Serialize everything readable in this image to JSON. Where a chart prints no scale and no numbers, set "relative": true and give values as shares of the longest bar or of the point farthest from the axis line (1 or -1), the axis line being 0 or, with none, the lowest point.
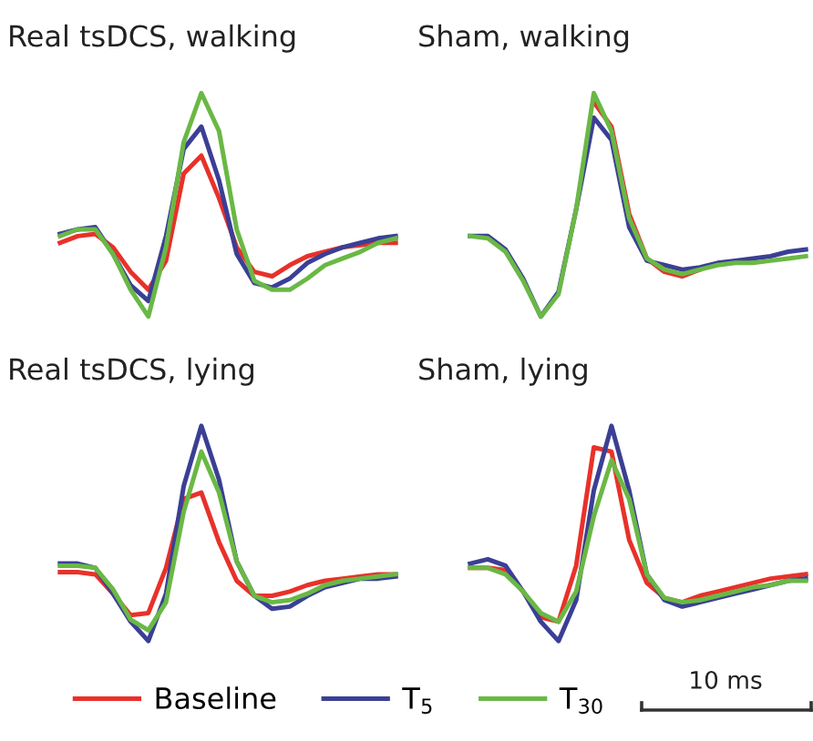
{
  "chart_data": [
    {
      "type": "line",
      "title": "Real tsDCS, walking",
      "relative": true,
      "legend": "bottom",
      "categories": [
        null,
        null,
        null,
        null,
        null,
        null,
        null,
        null,
        null,
        null,
        null,
        null,
        null,
        null,
        null,
        null,
        null,
        null,
        null,
        null
      ],
      "series": [
        {
          "name": "Baseline",
          "color": "#e8312a",
          "values": [
            0.33,
            0.36,
            0.37,
            0.31,
            0.2,
            0.12,
            0.25,
            0.64,
            0.72,
            0.53,
            0.31,
            0.2,
            0.18,
            0.23,
            0.27,
            0.29,
            0.31,
            0.32,
            0.33,
            0.33
          ]
        },
        {
          "name": "T$_{5}$",
          "color": "#3b3f95",
          "values": [
            0.37,
            0.39,
            0.4,
            0.28,
            0.14,
            0.07,
            0.36,
            0.75,
            0.85,
            0.61,
            0.28,
            0.15,
            0.13,
            0.17,
            0.24,
            0.28,
            0.31,
            0.33,
            0.35,
            0.36
          ]
        },
        {
          "name": "T$_{30}$",
          "color": "#6ab845",
          "values": [
            0.36,
            0.39,
            0.39,
            0.28,
            0.12,
            0,
            0.31,
            0.78,
            1,
            0.83,
            0.39,
            0.16,
            0.12,
            0.12,
            0.17,
            0.23,
            0.26,
            0.29,
            0.33,
            0.35
          ]
        }
      ]
    },
    {
      "type": "line",
      "title": "Sham, walking",
      "relative": true,
      "legend": "bottom",
      "categories": [
        null,
        null,
        null,
        null,
        null,
        null,
        null,
        null,
        null,
        null,
        null,
        null,
        null,
        null,
        null,
        null,
        null,
        null,
        null,
        null
      ],
      "series": [
        {
          "color": "#e8312a",
          "values": [
            null,
            null,
            null,
            null,
            null,
            null,
            null,
            0.96,
            0.85,
            0.46,
            0.26,
            0.2,
            0.18,
            0.21,
            null,
            null,
            null,
            null,
            null,
            null
          ]
        },
        {
          "color": "#3b3f95",
          "values": [
            0.36,
            0.36,
            0.3,
            0.17,
            0,
            0.11,
            0.48,
            0.89,
            0.79,
            0.4,
            0.25,
            0.23,
            0.21,
            0.22,
            0.24,
            0.25,
            0.26,
            0.27,
            0.29,
            0.3
          ]
        },
        {
          "color": "#6ab845",
          "values": [
            0.36,
            0.35,
            0.29,
            0.16,
            0,
            0.1,
            0.48,
            1,
            0.83,
            0.44,
            0.26,
            0.21,
            0.19,
            0.21,
            0.23,
            0.24,
            0.24,
            0.25,
            0.26,
            0.27
          ]
        }
      ]
    },
    {
      "type": "line",
      "title": "Real tsDCS, lying",
      "relative": true,
      "legend": "bottom",
      "categories": [
        null,
        null,
        null,
        null,
        null,
        null,
        null,
        null,
        null,
        null,
        null,
        null,
        null,
        null,
        null,
        null,
        null,
        null,
        null,
        null
      ],
      "series": [
        {
          "color": "#e8312a",
          "values": [
            0.32,
            0.32,
            0.31,
            0.22,
            0.12,
            0.13,
            0.34,
            0.66,
            0.69,
            0.46,
            0.28,
            0.21,
            0.21,
            0.23,
            0.26,
            0.28,
            0.29,
            0.3,
            0.31,
            0.31
          ]
        },
        {
          "color": "#3b3f95",
          "values": [
            0.36,
            0.36,
            0.34,
            0.22,
            0.09,
            0,
            0.22,
            0.72,
            1,
            0.75,
            0.37,
            0.21,
            0.15,
            0.16,
            0.21,
            0.25,
            0.27,
            0.29,
            0.29,
            0.3
          ]
        },
        {
          "color": "#6ab845",
          "values": [
            0.35,
            0.35,
            0.34,
            0.24,
            0.1,
            0.05,
            0.18,
            0.6,
            0.88,
            0.69,
            0.37,
            0.21,
            0.18,
            0.19,
            0.22,
            0.26,
            0.28,
            0.29,
            0.3,
            0.31
          ]
        }
      ]
    },
    {
      "type": "line",
      "title": "Sham, lying",
      "relative": true,
      "legend": "bottom",
      "annotations": [
        "10 ms"
      ],
      "categories": [
        null,
        null,
        null,
        null,
        null,
        null,
        null,
        null,
        null,
        null,
        null,
        null,
        null,
        null,
        null,
        null,
        null,
        null,
        null,
        null
      ],
      "series": [
        {
          "color": "#e8312a",
          "values": [
            0.34,
            0.34,
            0.33,
            0.23,
            0.11,
            0.09,
            0.35,
            0.9,
            0.88,
            0.47,
            0.27,
            0.2,
            0.18,
            0.21,
            0.23,
            0.25,
            0.27,
            0.29,
            0.3,
            0.31
          ]
        },
        {
          "color": "#3b3f95",
          "values": [
            0.36,
            0.38,
            0.35,
            0.23,
            0.09,
            0,
            0.19,
            0.7,
            1,
            0.7,
            0.31,
            0.19,
            0.16,
            0.18,
            0.2,
            0.22,
            0.24,
            0.26,
            0.28,
            0.29
          ]
        },
        {
          "color": "#6ab845",
          "values": [
            0.34,
            0.34,
            0.31,
            0.23,
            0.13,
            0.09,
            0.23,
            0.58,
            0.84,
            0.66,
            0.31,
            0.2,
            0.18,
            0.19,
            0.21,
            0.23,
            0.25,
            0.26,
            0.28,
            0.28
          ]
        }
      ]
    }
  ]
}
